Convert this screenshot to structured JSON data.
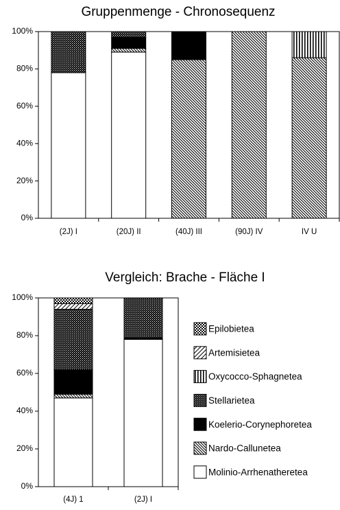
{
  "chart_data": [
    {
      "type": "bar",
      "stacked": true,
      "title": "Gruppenmenge - Chronosequenz",
      "categories": [
        "(2J) I",
        "(20J) II",
        "(40J) III",
        "(90J) IV",
        "IV U"
      ],
      "series": [
        {
          "color": "#ffffff",
          "pattern": "none",
          "values": [
            78,
            89,
            0,
            0,
            0
          ]
        },
        {
          "color": "#000000",
          "pattern": "diagonal-dense",
          "values": [
            0,
            2,
            85,
            100,
            86
          ]
        },
        {
          "color": "#000000",
          "pattern": "none",
          "values": [
            0,
            6,
            15,
            0,
            0
          ]
        },
        {
          "color": "#000000",
          "pattern": "dots",
          "values": [
            22,
            3,
            0,
            0,
            0
          ]
        },
        {
          "color": "#000000",
          "pattern": "vertical",
          "values": [
            0,
            0,
            0,
            0,
            14
          ]
        },
        {
          "color": "#000000",
          "pattern": "diagonal",
          "values": [
            0,
            0,
            0,
            0,
            0
          ]
        },
        {
          "color": "#000000",
          "pattern": "checker",
          "values": [
            0,
            0,
            0,
            0,
            0
          ]
        }
      ],
      "ylim": [
        0,
        100
      ],
      "yticks": [
        {
          "value": 0,
          "label": "0%"
        },
        {
          "value": 20,
          "label": "20%"
        },
        {
          "value": 40,
          "label": "40%"
        },
        {
          "value": 60,
          "label": "60%"
        },
        {
          "value": 80,
          "label": "80%"
        },
        {
          "value": 100,
          "label": "100%"
        }
      ],
      "legend": false
    },
    {
      "type": "bar",
      "stacked": true,
      "title": "Vergleich: Brache - Fläche I",
      "categories": [
        "(4J) 1",
        "(2J) I"
      ],
      "series": [
        {
          "name": "Molinio-Arrhenatheretea",
          "color": "#ffffff",
          "pattern": "none",
          "values": [
            47,
            78
          ]
        },
        {
          "name": "Nardo-Callunetea",
          "color": "#000000",
          "pattern": "diagonal-dense",
          "values": [
            2,
            0
          ]
        },
        {
          "name": "Koelerio-Corynephoretea",
          "color": "#000000",
          "pattern": "none",
          "values": [
            13,
            1
          ]
        },
        {
          "name": "Stellarietea",
          "color": "#000000",
          "pattern": "dots",
          "values": [
            32,
            21
          ]
        },
        {
          "name": "Oxycocco-Sphagnetea",
          "color": "#000000",
          "pattern": "vertical",
          "values": [
            0,
            0
          ]
        },
        {
          "name": "Artemisietea",
          "color": "#000000",
          "pattern": "diagonal",
          "values": [
            3,
            0
          ]
        },
        {
          "name": "Epilobietea",
          "color": "#000000",
          "pattern": "checker",
          "values": [
            3,
            0
          ]
        }
      ],
      "ylim": [
        0,
        100
      ],
      "yticks": [
        {
          "value": 0,
          "label": "0%"
        },
        {
          "value": 20,
          "label": "20%"
        },
        {
          "value": 40,
          "label": "40%"
        },
        {
          "value": 60,
          "label": "60%"
        },
        {
          "value": 80,
          "label": "80%"
        },
        {
          "value": 100,
          "label": "100%"
        }
      ],
      "legend": "right"
    }
  ]
}
